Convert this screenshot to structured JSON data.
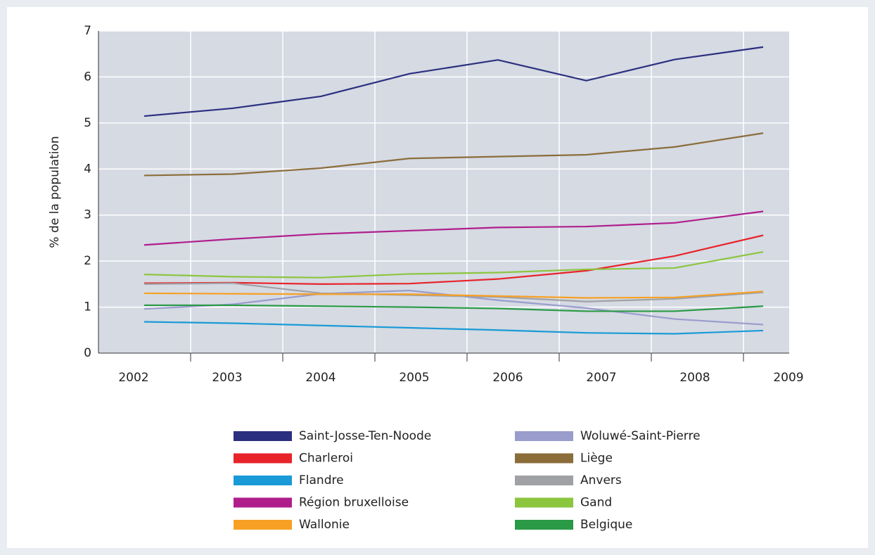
{
  "chart_data": {
    "type": "line",
    "y_label": "% de la population",
    "categories": [
      "2002",
      "2003",
      "2004",
      "2005",
      "2006",
      "2007",
      "2008",
      "2009"
    ],
    "ylim": [
      0,
      7
    ],
    "yticks": [
      0,
      1,
      2,
      3,
      4,
      5,
      6,
      7
    ],
    "grid": true,
    "series": [
      {
        "name": "Saint-Josse-Ten-Noode",
        "color": "#2b2f7f",
        "values": [
          5.15,
          5.32,
          5.58,
          6.07,
          6.37,
          5.92,
          6.38,
          6.65
        ]
      },
      {
        "name": "Woluwé-Saint-Pierre",
        "color": "#9a9ccc",
        "values": [
          0.96,
          1.06,
          1.29,
          1.36,
          1.15,
          0.98,
          0.74,
          0.62
        ]
      },
      {
        "name": "Charleroi",
        "color": "#e8232a",
        "values": [
          1.52,
          1.53,
          1.5,
          1.51,
          1.61,
          1.79,
          2.11,
          2.56
        ]
      },
      {
        "name": "Liège",
        "color": "#8b6d3a",
        "values": [
          3.86,
          3.89,
          4.02,
          4.23,
          4.27,
          4.31,
          4.48,
          4.78
        ]
      },
      {
        "name": "Flandre",
        "color": "#1a9ad6",
        "values": [
          0.68,
          0.65,
          0.6,
          0.55,
          0.5,
          0.44,
          0.42,
          0.49
        ]
      },
      {
        "name": "Anvers",
        "color": "#a0a1a5",
        "values": [
          1.5,
          1.52,
          1.3,
          1.26,
          1.22,
          1.12,
          1.18,
          1.32
        ]
      },
      {
        "name": "Région bruxelloise",
        "color": "#b01e8c",
        "values": [
          2.35,
          2.48,
          2.59,
          2.66,
          2.73,
          2.75,
          2.83,
          3.08
        ]
      },
      {
        "name": "Gand",
        "color": "#8cc63f",
        "values": [
          1.71,
          1.66,
          1.64,
          1.72,
          1.75,
          1.82,
          1.85,
          2.2
        ]
      },
      {
        "name": "Wallonie",
        "color": "#f7a024",
        "values": [
          1.3,
          1.29,
          1.28,
          1.28,
          1.24,
          1.2,
          1.21,
          1.34
        ]
      },
      {
        "name": "Belgique",
        "color": "#2a9a47",
        "values": [
          1.04,
          1.04,
          1.02,
          1.0,
          0.97,
          0.91,
          0.91,
          1.02
        ]
      }
    ]
  }
}
